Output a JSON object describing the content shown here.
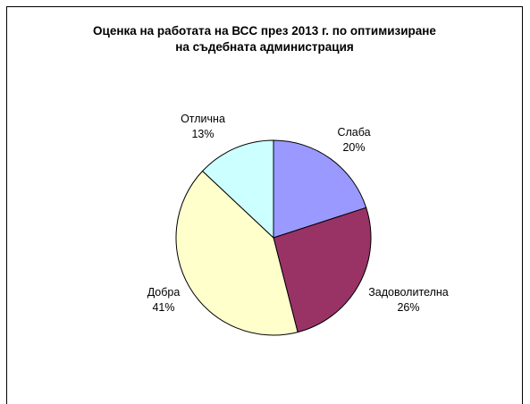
{
  "chart_data": {
    "type": "pie",
    "title": "Оценка на работата на ВСС през 2013 г. по оптимизиране на съдебната администрация",
    "title_lines": [
      "Оценка на работата на ВСС през 2013 г. по оптимизиране",
      "на съдебната администрация"
    ],
    "start_angle": "12 o'clock",
    "direction": "clockwise",
    "slices": [
      {
        "label": "Слаба",
        "value": 20,
        "pct_label": "20%",
        "color": "#9999FF"
      },
      {
        "label": "Задоволителна",
        "value": 26,
        "pct_label": "26%",
        "color": "#993366"
      },
      {
        "label": "Добра",
        "value": 41,
        "pct_label": "41%",
        "color": "#FFFFCC"
      },
      {
        "label": "Отлична",
        "value": 13,
        "pct_label": "13%",
        "color": "#CCFFFF"
      }
    ]
  }
}
